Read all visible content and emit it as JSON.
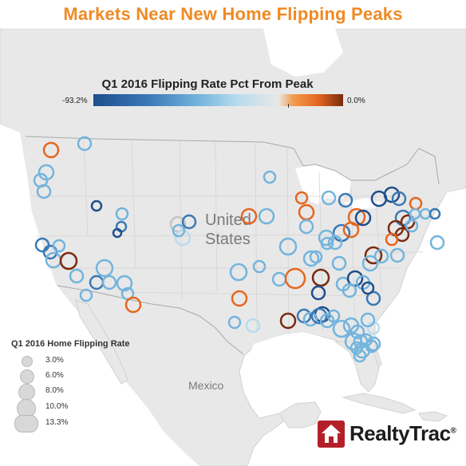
{
  "title": "Markets Near New Home Flipping Peaks",
  "color_legend": {
    "title": "Q1 2016 Flipping Rate Pct From Peak",
    "min_label": "-93.2%",
    "max_label": "0.0%",
    "colors": [
      "#1f4e8c",
      "#3a79b5",
      "#73b4dd",
      "#b8dcee",
      "#e8e8e8",
      "#f39b4e",
      "#e5661f",
      "#7a2a0e"
    ]
  },
  "size_legend": {
    "title": "Q1 2016 Home Flipping Rate",
    "items": [
      {
        "label": "3.0%",
        "value": 3.0
      },
      {
        "label": "6.0%",
        "value": 6.0
      },
      {
        "label": "8.0%",
        "value": 8.0
      },
      {
        "label": "10.0%",
        "value": 10.0
      },
      {
        "label": "13.3%",
        "value": 13.3
      }
    ]
  },
  "map_labels": {
    "country_us_line1": "United",
    "country_us_line2": "States",
    "country_mexico": "Mexico"
  },
  "logo": {
    "text": "RealtyTrac",
    "registered": "®"
  }
}
